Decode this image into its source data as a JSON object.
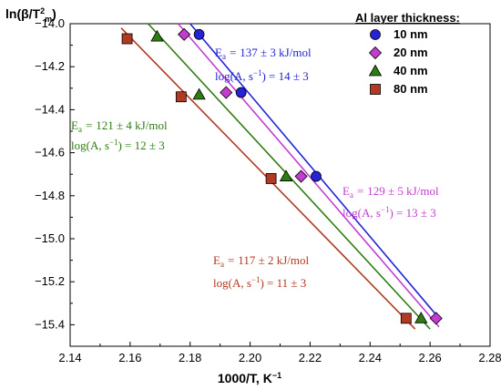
{
  "chart_data": {
    "type": "scatter",
    "xlabel": "1000/T, K",
    "xlabel_sup": "−1",
    "ylabel_prefix": "ln(β/T",
    "ylabel_sup": "2",
    "ylabel_sub": "m",
    "ylabel_suffix": ")",
    "xlim": [
      2.14,
      2.28
    ],
    "ylim": [
      -15.5,
      -14.0
    ],
    "x_ticks": [
      "2.14",
      "2.16",
      "2.18",
      "2.20",
      "2.22",
      "2.24",
      "2.26",
      "2.28"
    ],
    "x_tick_values": [
      2.14,
      2.16,
      2.18,
      2.2,
      2.22,
      2.24,
      2.26,
      2.28
    ],
    "y_ticks": [
      "−14.0",
      "−14.2",
      "−14.4",
      "−14.6",
      "−14.8",
      "−15.0",
      "−15.2",
      "−15.4"
    ],
    "y_tick_values": [
      -14.0,
      -14.2,
      -14.4,
      -14.6,
      -14.8,
      -15.0,
      -15.2,
      -15.4
    ],
    "legend_title": "Al layer thickness:",
    "legend_position": "top-right",
    "grid": false,
    "series": [
      {
        "name": "10 nm",
        "color": "#2424d6",
        "marker": "circle",
        "x": [
          2.183,
          2.197,
          2.222
        ],
        "y": [
          -14.05,
          -14.32,
          -14.71
        ],
        "fit": [
          [
            2.18,
            -14.0
          ],
          [
            2.263,
            -15.37
          ]
        ],
        "ea_value": "137 ± 3 kJ/mol",
        "loga_value": "14 ± 3"
      },
      {
        "name": "20 nm",
        "color": "#c43bd1",
        "marker": "diamond",
        "x": [
          2.178,
          2.192,
          2.217,
          2.262
        ],
        "y": [
          -14.05,
          -14.32,
          -14.71,
          -15.37
        ],
        "fit": [
          [
            2.176,
            -14.0
          ],
          [
            2.263,
            -15.41
          ]
        ],
        "ea_value": "129 ± 5 kJ/mol",
        "loga_value": "13 ± 3"
      },
      {
        "name": "40 nm",
        "color": "#2e7d12",
        "marker": "triangle",
        "x": [
          2.169,
          2.183,
          2.212,
          2.257
        ],
        "y": [
          -14.06,
          -14.33,
          -14.71,
          -15.37
        ],
        "fit": [
          [
            2.166,
            -14.0
          ],
          [
            2.26,
            -15.42
          ]
        ],
        "ea_value": "121 ± 4 kJ/mol",
        "loga_value": "12 ± 3"
      },
      {
        "name": "80 nm",
        "color": "#b03a22",
        "marker": "square",
        "x": [
          2.159,
          2.177,
          2.207,
          2.252
        ],
        "y": [
          -14.07,
          -14.34,
          -14.72,
          -15.37
        ],
        "fit": [
          [
            2.157,
            -14.02
          ],
          [
            2.255,
            -15.42
          ]
        ],
        "ea_value": "117 ± 2 kJ/mol",
        "loga_value": "11 ± 3"
      }
    ],
    "annotation_ea_prefix": "E",
    "annotation_ea_sub": "a",
    "annotation_loga_prefix": "log(A, s",
    "annotation_loga_sup": "−1",
    "annotation_loga_suffix": ") = "
  }
}
